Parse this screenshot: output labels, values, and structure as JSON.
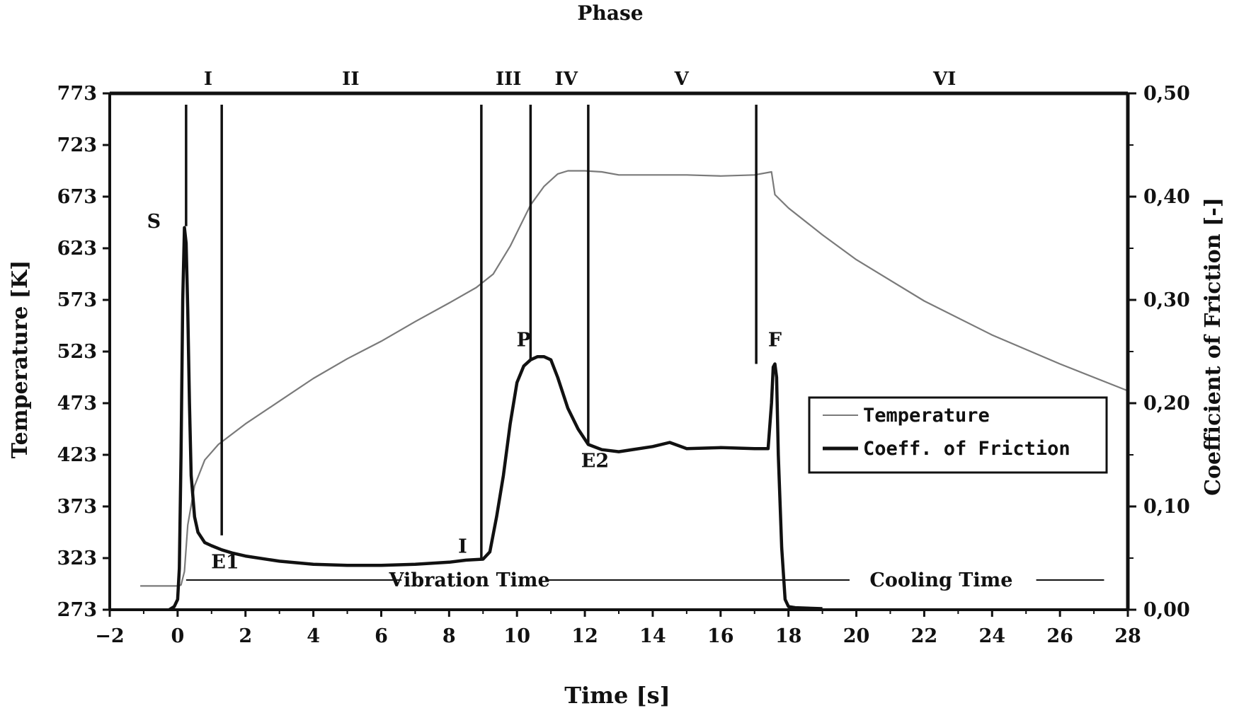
{
  "chart_data": {
    "type": "line",
    "title": "Phase",
    "xlabel": "Time [s]",
    "ylabel_left": "Temperature [K]",
    "ylabel_right": "Coefficient of Friction [-]",
    "xlim": [
      -2,
      28
    ],
    "ylim_left": [
      273,
      773
    ],
    "ylim_right": [
      0,
      0.5
    ],
    "xticks": [
      "-2",
      "0",
      "2",
      "4",
      "6",
      "8",
      "10",
      "12",
      "14",
      "16",
      "18",
      "20",
      "22",
      "24",
      "26",
      "28"
    ],
    "yticks_left": [
      "273",
      "323",
      "373",
      "423",
      "473",
      "523",
      "573",
      "623",
      "673",
      "723",
      "773"
    ],
    "yticks_right": [
      "0,00",
      "0,10",
      "0,20",
      "0,30",
      "0,40",
      "0,50"
    ],
    "phase_labels": [
      {
        "label": "I",
        "x": 0.9
      },
      {
        "label": "II",
        "x": 5.1
      },
      {
        "label": "III",
        "x": 9.75
      },
      {
        "label": "IV",
        "x": 11.45
      },
      {
        "label": "V",
        "x": 14.85
      },
      {
        "label": "VI",
        "x": 22.6
      }
    ],
    "phase_boundaries": [
      0.25,
      1.3,
      8.95,
      10.4,
      12.1,
      17.05
    ],
    "annotations": [
      {
        "label": "S",
        "x": -0.7,
        "y_cof": 0.37
      },
      {
        "label": "E1",
        "x": 1.4,
        "y_cof": 0.04
      },
      {
        "label": "I",
        "x": 8.4,
        "y_cof": 0.055
      },
      {
        "label": "P",
        "x": 10.2,
        "y_cof": 0.255
      },
      {
        "label": "E2",
        "x": 12.3,
        "y_cof": 0.138
      },
      {
        "label": "F",
        "x": 17.6,
        "y_cof": 0.255
      }
    ],
    "time_labels": {
      "vibration": "Vibration Time",
      "cooling": "Cooling Time"
    },
    "legend": {
      "temperature": "Temperature",
      "cof": "Coeff. of Friction",
      "position": "center-right"
    },
    "series": [
      {
        "name": "Temperature",
        "axis": "left",
        "color": "#7a7a7a",
        "x": [
          -1.1,
          -0.5,
          0,
          0.1,
          0.2,
          0.3,
          0.5,
          0.8,
          1.2,
          2,
          3,
          4,
          5,
          6,
          7,
          8,
          8.8,
          9.3,
          9.8,
          10.1,
          10.4,
          10.8,
          11.2,
          11.5,
          12,
          12.5,
          13,
          14,
          15,
          16,
          17,
          17.5,
          17.6,
          18,
          19,
          20,
          22,
          24,
          26,
          28
        ],
        "y": [
          296,
          296,
          296,
          297,
          310,
          355,
          393,
          418,
          433,
          453,
          475,
          497,
          516,
          533,
          552,
          570,
          585,
          598,
          625,
          645,
          665,
          683,
          695,
          698,
          698,
          697,
          694,
          694,
          694,
          693,
          694,
          697,
          675,
          662,
          636,
          612,
          572,
          539,
          511,
          485
        ]
      },
      {
        "name": "Coeff. of Friction",
        "axis": "right",
        "color": "#111111",
        "x": [
          -0.25,
          -0.1,
          0,
          0.05,
          0.1,
          0.15,
          0.2,
          0.25,
          0.3,
          0.35,
          0.4,
          0.5,
          0.6,
          0.8,
          1.0,
          1.3,
          1.6,
          2,
          3,
          4,
          5,
          6,
          7,
          8,
          8.5,
          9.0,
          9.2,
          9.4,
          9.6,
          9.8,
          10.0,
          10.2,
          10.4,
          10.6,
          10.8,
          11.0,
          11.2,
          11.5,
          11.8,
          12.1,
          12.5,
          13,
          14,
          14.5,
          15,
          16,
          17,
          17.4,
          17.5,
          17.55,
          17.6,
          17.65,
          17.7,
          17.8,
          17.9,
          18.0,
          18.2,
          19.0
        ],
        "y": [
          0.0,
          0.003,
          0.01,
          0.04,
          0.15,
          0.3,
          0.37,
          0.355,
          0.29,
          0.2,
          0.13,
          0.09,
          0.075,
          0.065,
          0.062,
          0.058,
          0.055,
          0.052,
          0.047,
          0.044,
          0.043,
          0.043,
          0.044,
          0.046,
          0.048,
          0.049,
          0.056,
          0.09,
          0.13,
          0.18,
          0.22,
          0.236,
          0.242,
          0.245,
          0.245,
          0.242,
          0.225,
          0.195,
          0.175,
          0.16,
          0.155,
          0.153,
          0.158,
          0.162,
          0.156,
          0.157,
          0.156,
          0.156,
          0.2,
          0.235,
          0.238,
          0.225,
          0.15,
          0.06,
          0.01,
          0.003,
          0.002,
          0.001
        ]
      }
    ]
  }
}
